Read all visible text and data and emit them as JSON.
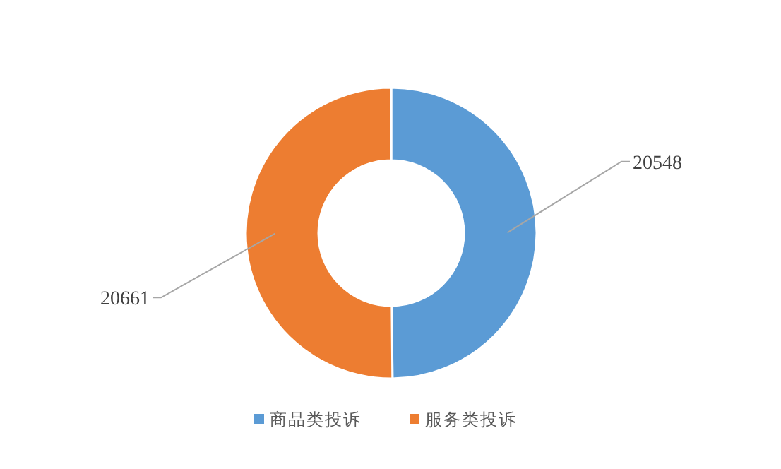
{
  "chart_data": {
    "type": "donut",
    "categories": [
      "商品类投诉",
      "服务类投诉"
    ],
    "values": [
      20548,
      20661
    ],
    "colors": [
      "#5b9bd5",
      "#ed7d31"
    ],
    "data_labels": true,
    "legend": "bottom"
  }
}
